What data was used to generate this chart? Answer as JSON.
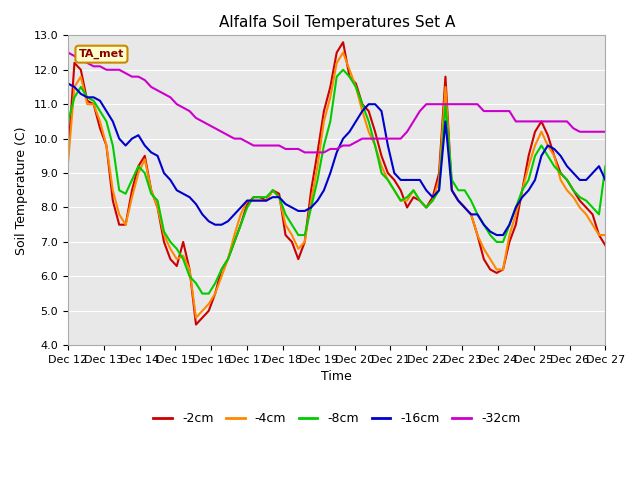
{
  "title": "Alfalfa Soil Temperatures Set A",
  "xlabel": "Time",
  "ylabel": "Soil Temperature (C)",
  "ylim": [
    4.0,
    13.0
  ],
  "yticks": [
    4.0,
    5.0,
    6.0,
    7.0,
    8.0,
    9.0,
    10.0,
    11.0,
    12.0,
    13.0
  ],
  "xtick_labels": [
    "Dec 12",
    "Dec 13",
    "Dec 14",
    "Dec 15",
    "Dec 16",
    "Dec 17",
    "Dec 18",
    "Dec 19",
    "Dec 20",
    "Dec 21",
    "Dec 22",
    "Dec 23",
    "Dec 24",
    "Dec 25",
    "Dec 26",
    "Dec 27"
  ],
  "annotation_text": "TA_met",
  "annotation_bg": "#ffffcc",
  "annotation_border": "#cc8800",
  "colors": {
    "-2cm": "#cc0000",
    "-4cm": "#ff8800",
    "-8cm": "#00cc00",
    "-16cm": "#0000cc",
    "-32cm": "#cc00cc"
  },
  "linewidth": 1.5,
  "background_plot": "#e8e8e8",
  "background_fig": "#ffffff",
  "grid_color": "#ffffff",
  "series": {
    "-2cm": [
      9.5,
      12.2,
      12.0,
      11.1,
      11.0,
      10.3,
      9.8,
      8.2,
      7.5,
      7.5,
      8.5,
      9.2,
      9.5,
      8.5,
      8.0,
      7.0,
      6.5,
      6.3,
      7.0,
      6.2,
      4.6,
      4.8,
      5.0,
      5.5,
      6.2,
      6.5,
      7.0,
      7.5,
      8.1,
      8.3,
      8.3,
      8.2,
      8.5,
      8.4,
      7.2,
      7.0,
      6.5,
      7.0,
      8.5,
      9.6,
      10.8,
      11.5,
      12.5,
      12.8,
      11.8,
      11.6,
      11.0,
      10.8,
      10.2,
      9.5,
      9.0,
      8.8,
      8.5,
      8.0,
      8.3,
      8.2,
      8.0,
      8.3,
      9.0,
      11.8,
      8.5,
      8.2,
      8.0,
      7.8,
      7.2,
      6.5,
      6.2,
      6.1,
      6.2,
      7.0,
      7.5,
      8.5,
      9.5,
      10.2,
      10.5,
      10.1,
      9.5,
      9.0,
      8.8,
      8.5,
      8.2,
      8.0,
      7.8,
      7.2,
      6.9
    ],
    "-4cm": [
      9.3,
      11.5,
      11.8,
      11.0,
      11.0,
      10.5,
      9.8,
      8.5,
      7.8,
      7.5,
      8.3,
      9.0,
      9.4,
      8.5,
      8.0,
      7.2,
      6.8,
      6.5,
      6.6,
      6.2,
      4.8,
      5.0,
      5.2,
      5.5,
      6.0,
      6.5,
      7.2,
      7.8,
      8.2,
      8.2,
      8.2,
      8.2,
      8.5,
      8.3,
      7.5,
      7.2,
      6.8,
      7.0,
      8.2,
      9.2,
      10.5,
      11.2,
      12.2,
      12.5,
      12.0,
      11.5,
      10.8,
      10.2,
      9.8,
      9.2,
      8.8,
      8.5,
      8.2,
      8.2,
      8.5,
      8.2,
      8.0,
      8.2,
      8.8,
      11.5,
      8.5,
      8.2,
      8.0,
      7.8,
      7.2,
      6.8,
      6.5,
      6.2,
      6.2,
      7.2,
      7.8,
      8.5,
      9.2,
      9.8,
      10.2,
      9.8,
      9.5,
      8.8,
      8.5,
      8.3,
      8.0,
      7.8,
      7.5,
      7.2,
      7.2
    ],
    "-8cm": [
      10.5,
      11.2,
      11.5,
      11.2,
      11.1,
      10.8,
      10.5,
      9.8,
      8.5,
      8.4,
      8.8,
      9.2,
      9.0,
      8.4,
      8.2,
      7.3,
      7.0,
      6.8,
      6.5,
      6.0,
      5.8,
      5.5,
      5.5,
      5.8,
      6.2,
      6.5,
      7.0,
      7.5,
      8.0,
      8.3,
      8.3,
      8.3,
      8.5,
      8.3,
      7.8,
      7.5,
      7.2,
      7.2,
      8.0,
      8.8,
      9.8,
      10.5,
      11.8,
      12.0,
      11.8,
      11.5,
      11.0,
      10.5,
      9.8,
      9.0,
      8.8,
      8.5,
      8.2,
      8.3,
      8.5,
      8.2,
      8.0,
      8.2,
      8.5,
      11.0,
      8.8,
      8.5,
      8.5,
      8.2,
      7.8,
      7.5,
      7.2,
      7.0,
      7.0,
      7.5,
      8.0,
      8.5,
      8.8,
      9.5,
      9.8,
      9.5,
      9.2,
      9.0,
      8.8,
      8.5,
      8.3,
      8.2,
      8.0,
      7.8,
      9.2
    ],
    "-16cm": [
      11.6,
      11.5,
      11.3,
      11.2,
      11.2,
      11.1,
      10.8,
      10.5,
      10.0,
      9.8,
      10.0,
      10.1,
      9.8,
      9.6,
      9.5,
      9.0,
      8.8,
      8.5,
      8.4,
      8.3,
      8.1,
      7.8,
      7.6,
      7.5,
      7.5,
      7.6,
      7.8,
      8.0,
      8.2,
      8.2,
      8.2,
      8.2,
      8.3,
      8.3,
      8.1,
      8.0,
      7.9,
      7.9,
      8.0,
      8.2,
      8.5,
      9.0,
      9.6,
      10.0,
      10.2,
      10.5,
      10.8,
      11.0,
      11.0,
      10.8,
      9.8,
      9.0,
      8.8,
      8.8,
      8.8,
      8.8,
      8.5,
      8.3,
      8.5,
      10.5,
      8.5,
      8.2,
      8.0,
      7.8,
      7.8,
      7.5,
      7.3,
      7.2,
      7.2,
      7.5,
      8.0,
      8.3,
      8.5,
      8.8,
      9.5,
      9.8,
      9.7,
      9.5,
      9.2,
      9.0,
      8.8,
      8.8,
      9.0,
      9.2,
      8.8
    ],
    "-32cm": [
      12.5,
      12.4,
      12.3,
      12.2,
      12.1,
      12.1,
      12.0,
      12.0,
      12.0,
      11.9,
      11.8,
      11.8,
      11.7,
      11.5,
      11.4,
      11.3,
      11.2,
      11.0,
      10.9,
      10.8,
      10.6,
      10.5,
      10.4,
      10.3,
      10.2,
      10.1,
      10.0,
      10.0,
      9.9,
      9.8,
      9.8,
      9.8,
      9.8,
      9.8,
      9.7,
      9.7,
      9.7,
      9.6,
      9.6,
      9.6,
      9.6,
      9.7,
      9.7,
      9.8,
      9.8,
      9.9,
      10.0,
      10.0,
      10.0,
      10.0,
      10.0,
      10.0,
      10.0,
      10.2,
      10.5,
      10.8,
      11.0,
      11.0,
      11.0,
      11.0,
      11.0,
      11.0,
      11.0,
      11.0,
      11.0,
      10.8,
      10.8,
      10.8,
      10.8,
      10.8,
      10.5,
      10.5,
      10.5,
      10.5,
      10.5,
      10.5,
      10.5,
      10.5,
      10.5,
      10.3,
      10.2,
      10.2,
      10.2,
      10.2,
      10.2
    ]
  }
}
